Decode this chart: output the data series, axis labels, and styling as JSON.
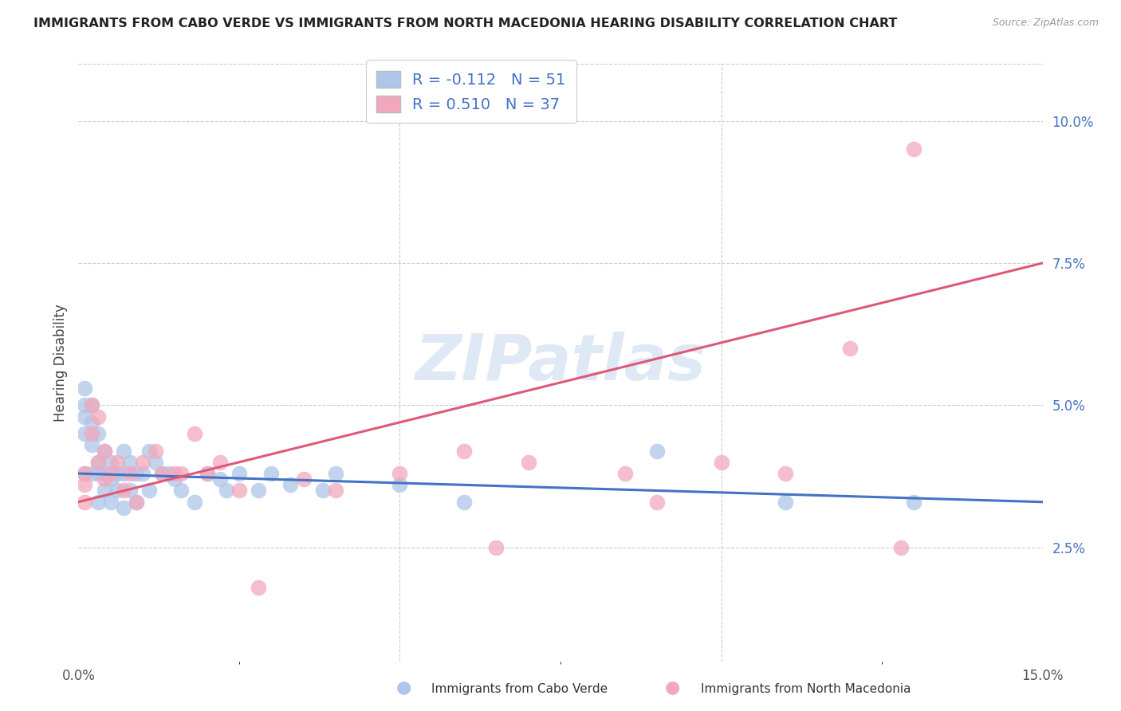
{
  "title": "IMMIGRANTS FROM CABO VERDE VS IMMIGRANTS FROM NORTH MACEDONIA HEARING DISABILITY CORRELATION CHART",
  "source": "Source: ZipAtlas.com",
  "ylabel": "Hearing Disability",
  "ylabel_right_ticks": [
    "2.5%",
    "5.0%",
    "7.5%",
    "10.0%"
  ],
  "ylabel_right_values": [
    0.025,
    0.05,
    0.075,
    0.1
  ],
  "watermark": "ZIPatlas",
  "legend_label1": "Immigrants from Cabo Verde",
  "legend_label2": "Immigrants from North Macedonia",
  "R_cabo": -0.112,
  "N_cabo": 51,
  "R_mac": 0.51,
  "N_mac": 37,
  "xmin": 0.0,
  "xmax": 0.15,
  "ymin": 0.005,
  "ymax": 0.11,
  "cabo_color": "#aec6e8",
  "mac_color": "#f2a8bc",
  "cabo_line_color": "#4472C4",
  "mac_line_color": "#e05878",
  "cabo_x": [
    0.001,
    0.001,
    0.001,
    0.001,
    0.001,
    0.002,
    0.002,
    0.002,
    0.002,
    0.003,
    0.003,
    0.003,
    0.003,
    0.004,
    0.004,
    0.004,
    0.005,
    0.005,
    0.005,
    0.006,
    0.006,
    0.007,
    0.007,
    0.007,
    0.008,
    0.008,
    0.009,
    0.009,
    0.01,
    0.011,
    0.011,
    0.012,
    0.013,
    0.014,
    0.015,
    0.016,
    0.018,
    0.02,
    0.022,
    0.023,
    0.025,
    0.028,
    0.03,
    0.033,
    0.038,
    0.04,
    0.05,
    0.06,
    0.09,
    0.11,
    0.13
  ],
  "cabo_y": [
    0.053,
    0.05,
    0.048,
    0.045,
    0.038,
    0.05,
    0.047,
    0.043,
    0.038,
    0.045,
    0.04,
    0.038,
    0.033,
    0.042,
    0.038,
    0.035,
    0.04,
    0.037,
    0.033,
    0.038,
    0.035,
    0.042,
    0.038,
    0.032,
    0.04,
    0.035,
    0.038,
    0.033,
    0.038,
    0.042,
    0.035,
    0.04,
    0.038,
    0.038,
    0.037,
    0.035,
    0.033,
    0.038,
    0.037,
    0.035,
    0.038,
    0.035,
    0.038,
    0.036,
    0.035,
    0.038,
    0.036,
    0.033,
    0.042,
    0.033,
    0.033
  ],
  "mac_x": [
    0.001,
    0.001,
    0.001,
    0.002,
    0.002,
    0.003,
    0.003,
    0.004,
    0.004,
    0.005,
    0.006,
    0.007,
    0.008,
    0.009,
    0.01,
    0.012,
    0.013,
    0.015,
    0.016,
    0.018,
    0.02,
    0.022,
    0.025,
    0.028,
    0.035,
    0.04,
    0.05,
    0.06,
    0.065,
    0.07,
    0.085,
    0.09,
    0.1,
    0.11,
    0.12,
    0.128,
    0.13
  ],
  "mac_y": [
    0.038,
    0.036,
    0.033,
    0.05,
    0.045,
    0.048,
    0.04,
    0.042,
    0.037,
    0.038,
    0.04,
    0.035,
    0.038,
    0.033,
    0.04,
    0.042,
    0.038,
    0.038,
    0.038,
    0.045,
    0.038,
    0.04,
    0.035,
    0.018,
    0.037,
    0.035,
    0.038,
    0.042,
    0.025,
    0.04,
    0.038,
    0.033,
    0.04,
    0.038,
    0.06,
    0.025,
    0.095
  ],
  "cabo_line_x": [
    0.0,
    0.15
  ],
  "cabo_line_y": [
    0.038,
    0.033
  ],
  "mac_line_x": [
    0.0,
    0.15
  ],
  "mac_line_y": [
    0.033,
    0.075
  ]
}
